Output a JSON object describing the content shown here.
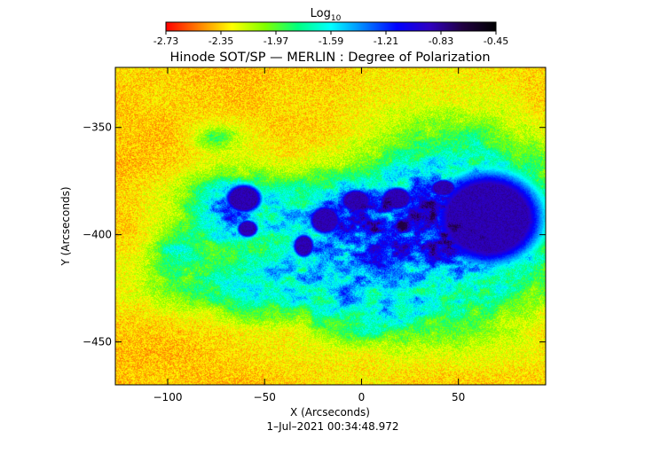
{
  "colorbar": {
    "label_main": "Log",
    "label_sub": "10",
    "ticks": [
      "-2.73",
      "-2.35",
      "-1.97",
      "-1.59",
      "-1.21",
      "-0.83",
      "-0.45"
    ],
    "range": [
      -2.73,
      -0.45
    ],
    "colormap": [
      "#ff0000",
      "#ff8000",
      "#ffff00",
      "#80ff00",
      "#00ff80",
      "#00ffff",
      "#0080ff",
      "#0000ff",
      "#3000c0",
      "#200040",
      "#000000"
    ]
  },
  "chart_data": {
    "type": "heatmap",
    "title": "Hinode SOT/SP — MERLIN : Degree of Polarization",
    "xlabel": "X (Arcseconds)",
    "ylabel": "Y (Arcseconds)",
    "xlim": [
      -127,
      95
    ],
    "ylim": [
      -470,
      -322
    ],
    "x_ticks": [
      -100,
      -50,
      0,
      50
    ],
    "x_tick_labels": [
      "−100",
      "−50",
      "0",
      "50"
    ],
    "y_ticks": [
      -350,
      -400,
      -450
    ],
    "y_tick_labels": [
      "−350",
      "−400",
      "−450"
    ],
    "timestamp": "1–Jul–2021 00:34:48.972",
    "features": [
      {
        "kind": "sunspot-umbra",
        "x": 65,
        "y": -392,
        "rx": 21,
        "ry": 16
      },
      {
        "kind": "pore",
        "x": -61,
        "y": -383,
        "rx": 7,
        "ry": 5
      },
      {
        "kind": "pore",
        "x": -59,
        "y": -397,
        "rx": 4,
        "ry": 3
      },
      {
        "kind": "pore",
        "x": -19,
        "y": -393,
        "rx": 6,
        "ry": 5
      },
      {
        "kind": "pore",
        "x": -30,
        "y": -405,
        "rx": 4,
        "ry": 4
      },
      {
        "kind": "pore",
        "x": -3,
        "y": -384,
        "rx": 6,
        "ry": 4
      },
      {
        "kind": "pore",
        "x": 18,
        "y": -383,
        "rx": 6,
        "ry": 4
      },
      {
        "kind": "pore",
        "x": 42,
        "y": -378,
        "rx": 5,
        "ry": 3
      }
    ]
  }
}
